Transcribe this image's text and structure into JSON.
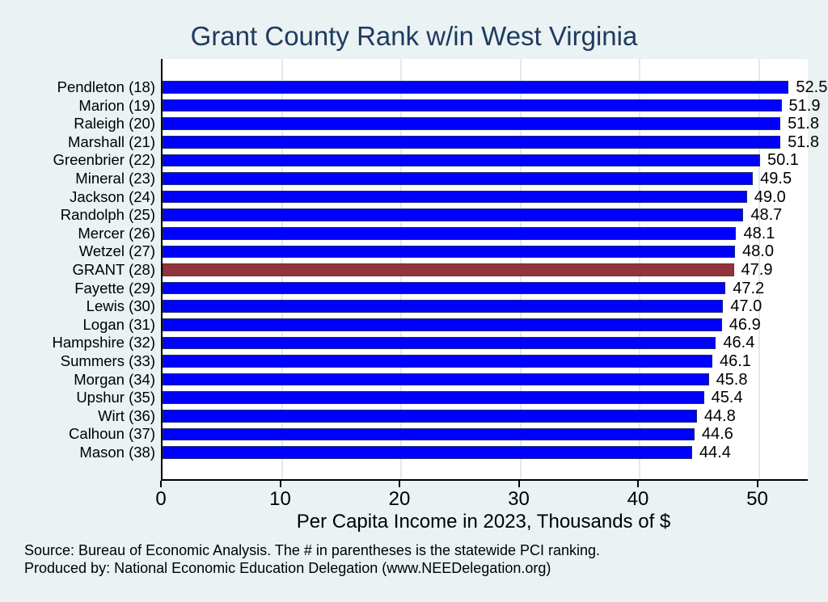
{
  "title": "Grant County Rank w/in West Virginia",
  "chart_data": {
    "type": "bar",
    "orientation": "horizontal",
    "title": "Grant County Rank w/in West Virginia",
    "xlabel": "Per Capita Income in 2023, Thousands of $",
    "ylabel": "",
    "categories": [
      "Pendleton (18)",
      "Marion (19)",
      "Raleigh (20)",
      "Marshall (21)",
      "Greenbrier (22)",
      "Mineral (23)",
      "Jackson (24)",
      "Randolph (25)",
      "Mercer (26)",
      "Wetzel (27)",
      "GRANT (28)",
      "Fayette (29)",
      "Lewis (30)",
      "Logan (31)",
      "Hampshire (32)",
      "Summers (33)",
      "Morgan (34)",
      "Upshur (35)",
      "Wirt (36)",
      "Calhoun (37)",
      "Mason (38)"
    ],
    "values": [
      52.5,
      51.9,
      51.8,
      51.8,
      50.1,
      49.5,
      49.0,
      48.7,
      48.1,
      48.0,
      47.9,
      47.2,
      47.0,
      46.9,
      46.4,
      46.1,
      45.8,
      45.4,
      44.8,
      44.6,
      44.4
    ],
    "value_label_decimals": 1,
    "highlight_index": 10,
    "highlight_category": "GRANT (28)",
    "xticks": [
      0,
      10,
      20,
      30,
      40,
      50
    ],
    "xlim": [
      0,
      54.1
    ],
    "grid": true,
    "legend": "none"
  },
  "notes": [
    "Source: Bureau of Economic Analysis. The # in parentheses is the statewide PCI ranking.",
    "Produced by: National Economic Education Delegation (www.NEEDelegation.org)"
  ],
  "colors": {
    "background": "#eaf2f3",
    "plot_background": "#ffffff",
    "title_text": "#1f3b60",
    "bar_default": "#0000ff",
    "bar_default_border": "#1f2d73",
    "bar_highlight": "#90353b",
    "bar_highlight_border": "#76292f",
    "gridline": "#dfebee",
    "axis_line": "#000000",
    "text": "#000000"
  }
}
